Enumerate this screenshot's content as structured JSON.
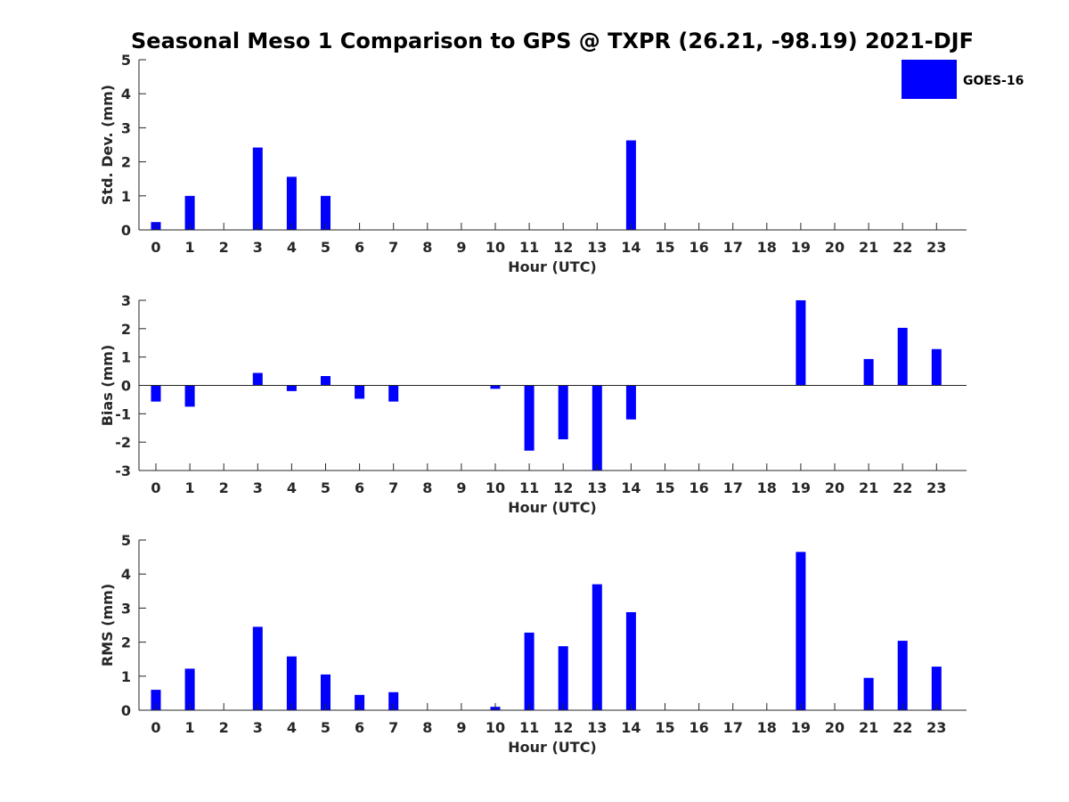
{
  "title": "Seasonal Meso 1 Comparison to GPS @ TXPR (26.21, -98.19) 2021-DJF",
  "colors": {
    "bar": "#0000ff",
    "axis": "#262626"
  },
  "legend": {
    "label": "GOES-16",
    "placement": "top-right"
  },
  "chart_data": [
    {
      "type": "bar",
      "title": "Seasonal Meso 1 Comparison to GPS @ TXPR (26.21, -98.19) 2021-DJF",
      "xlabel": "Hour (UTC)",
      "ylabel": "Std. Dev. (mm)",
      "ylim": [
        0,
        5
      ],
      "yticks": [
        0,
        1,
        2,
        3,
        4,
        5
      ],
      "categories": [
        "0",
        "1",
        "2",
        "3",
        "4",
        "5",
        "6",
        "7",
        "8",
        "9",
        "10",
        "11",
        "12",
        "13",
        "14",
        "15",
        "16",
        "17",
        "18",
        "19",
        "20",
        "21",
        "22",
        "23"
      ],
      "series": [
        {
          "name": "GOES-16",
          "values": [
            0.23,
            1.0,
            0,
            2.42,
            1.56,
            1.0,
            0,
            0,
            0,
            0,
            0,
            0,
            0,
            0,
            2.63,
            0,
            0,
            0,
            0,
            0,
            0,
            0,
            0,
            0
          ]
        }
      ]
    },
    {
      "type": "bar",
      "xlabel": "Hour (UTC)",
      "ylabel": "Bias (mm)",
      "ylim": [
        -3,
        3
      ],
      "yticks": [
        -3,
        -2,
        -1,
        0,
        1,
        2,
        3
      ],
      "categories": [
        "0",
        "1",
        "2",
        "3",
        "4",
        "5",
        "6",
        "7",
        "8",
        "9",
        "10",
        "11",
        "12",
        "13",
        "14",
        "15",
        "16",
        "17",
        "18",
        "19",
        "20",
        "21",
        "22",
        "23"
      ],
      "series": [
        {
          "name": "GOES-16",
          "values": [
            -0.57,
            -0.75,
            0,
            0.44,
            -0.2,
            0.33,
            -0.47,
            -0.57,
            0,
            0,
            -0.12,
            -2.3,
            -1.9,
            -3.0,
            -1.2,
            0,
            0,
            0,
            0,
            3.0,
            0,
            0.93,
            2.03,
            1.28
          ]
        }
      ]
    },
    {
      "type": "bar",
      "xlabel": "Hour (UTC)",
      "ylabel": "RMS (mm)",
      "ylim": [
        0,
        5
      ],
      "yticks": [
        0,
        1,
        2,
        3,
        4,
        5
      ],
      "categories": [
        "0",
        "1",
        "2",
        "3",
        "4",
        "5",
        "6",
        "7",
        "8",
        "9",
        "10",
        "11",
        "12",
        "13",
        "14",
        "15",
        "16",
        "17",
        "18",
        "19",
        "20",
        "21",
        "22",
        "23"
      ],
      "series": [
        {
          "name": "GOES-16",
          "values": [
            0.6,
            1.22,
            0,
            2.45,
            1.58,
            1.05,
            0.45,
            0.53,
            0,
            0,
            0.1,
            2.28,
            1.88,
            3.7,
            2.88,
            0,
            0,
            0,
            0,
            4.65,
            0,
            0.95,
            2.04,
            1.28
          ]
        }
      ]
    }
  ]
}
